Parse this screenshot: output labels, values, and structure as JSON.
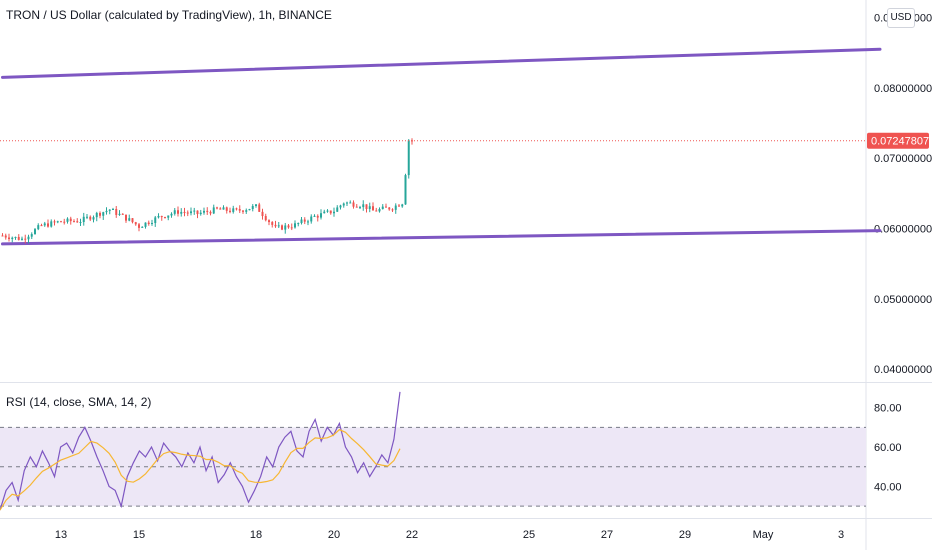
{
  "chart_title": "TRON / US Dollar (calculated by TradingView), 1h, BINANCE",
  "currency_button": "USD",
  "colors": {
    "up": "#26a69a",
    "down": "#ef5350",
    "trendline": "#7e57c2",
    "rsi_line": "#7e57c2",
    "rsi_ma": "#f7b733",
    "rsi_band": "#ede7f6",
    "last_price_tag": "#ef5350"
  },
  "chart_data": [
    {
      "type": "candlestick",
      "title": "TRON / US Dollar (calculated by TradingView), 1h, BINANCE",
      "x_tick_labels": [
        "13",
        "15",
        "18",
        "20",
        "22",
        "25",
        "27",
        "29",
        "May",
        "3"
      ],
      "y_tick_labels": [
        "0.04000000",
        "0.05000000",
        "0.06000000",
        "0.07000000",
        "0.08000000",
        "0.09000000"
      ],
      "ylim": [
        0.0383,
        0.0925
      ],
      "last_price": "0.07247807",
      "price_path": [
        {
          "x": "Apr 11 12:00",
          "y": 0.059
        },
        {
          "x": "Apr 12 00:00",
          "y": 0.0585
        },
        {
          "x": "Apr 12 12:00",
          "y": 0.0604
        },
        {
          "x": "Apr 13 00:00",
          "y": 0.061
        },
        {
          "x": "Apr 13 12:00",
          "y": 0.0611
        },
        {
          "x": "Apr 14 00:00",
          "y": 0.0622
        },
        {
          "x": "Apr 14 06:00",
          "y": 0.0627
        },
        {
          "x": "Apr 14 18:00",
          "y": 0.0612
        },
        {
          "x": "Apr 15 00:00",
          "y": 0.0603
        },
        {
          "x": "Apr 15 12:00",
          "y": 0.0616
        },
        {
          "x": "Apr 16 00:00",
          "y": 0.0624
        },
        {
          "x": "Apr 16 12:00",
          "y": 0.0621
        },
        {
          "x": "Apr 17 00:00",
          "y": 0.0627
        },
        {
          "x": "Apr 17 12:00",
          "y": 0.0625
        },
        {
          "x": "Apr 18 00:00",
          "y": 0.0631
        },
        {
          "x": "Apr 18 12:00",
          "y": 0.06
        },
        {
          "x": "Apr 19 00:00",
          "y": 0.0605
        },
        {
          "x": "Apr 19 12:00",
          "y": 0.0617
        },
        {
          "x": "Apr 20 00:00",
          "y": 0.0625
        },
        {
          "x": "Apr 20 06:00",
          "y": 0.0637
        },
        {
          "x": "Apr 20 18:00",
          "y": 0.0633
        },
        {
          "x": "Apr 21 00:00",
          "y": 0.0625
        },
        {
          "x": "Apr 21 12:00",
          "y": 0.063
        },
        {
          "x": "Apr 21 18:00",
          "y": 0.0637
        },
        {
          "x": "Apr 21 21:00",
          "y": 0.07
        },
        {
          "x": "Apr 21 23:00",
          "y": 0.0752
        },
        {
          "x": "Apr 22 00:00",
          "y": 0.0725
        }
      ],
      "trendlines": [
        {
          "x1": "Apr 11 12:00",
          "y1": 0.0815,
          "x2": "May 4 00:00",
          "y2": 0.0855
        },
        {
          "x1": "Apr 11 12:00",
          "y1": 0.0578,
          "x2": "May 4 00:00",
          "y2": 0.0597
        }
      ]
    },
    {
      "type": "line",
      "title": "RSI (14, close, SMA, 14, 2)",
      "y_tick_labels": [
        "40.00",
        "60.00",
        "80.00"
      ],
      "ylim": [
        25,
        92
      ],
      "bands": [
        30,
        50,
        70
      ],
      "series": [
        {
          "values": [
            28,
            38,
            42,
            33,
            48,
            55,
            50,
            58,
            52,
            45,
            60,
            62,
            57,
            65,
            70,
            63,
            55,
            48,
            40,
            38,
            30,
            45,
            52,
            58,
            55,
            60,
            53,
            62,
            58,
            55,
            50,
            57,
            52,
            60,
            48,
            55,
            42,
            46,
            52,
            45,
            40,
            32,
            38,
            45,
            55,
            50,
            60,
            65,
            68,
            58,
            55,
            68,
            74,
            63,
            70,
            66,
            72,
            60,
            55,
            47,
            52,
            45,
            50,
            56,
            52,
            64,
            88
          ]
        }
      ]
    }
  ]
}
